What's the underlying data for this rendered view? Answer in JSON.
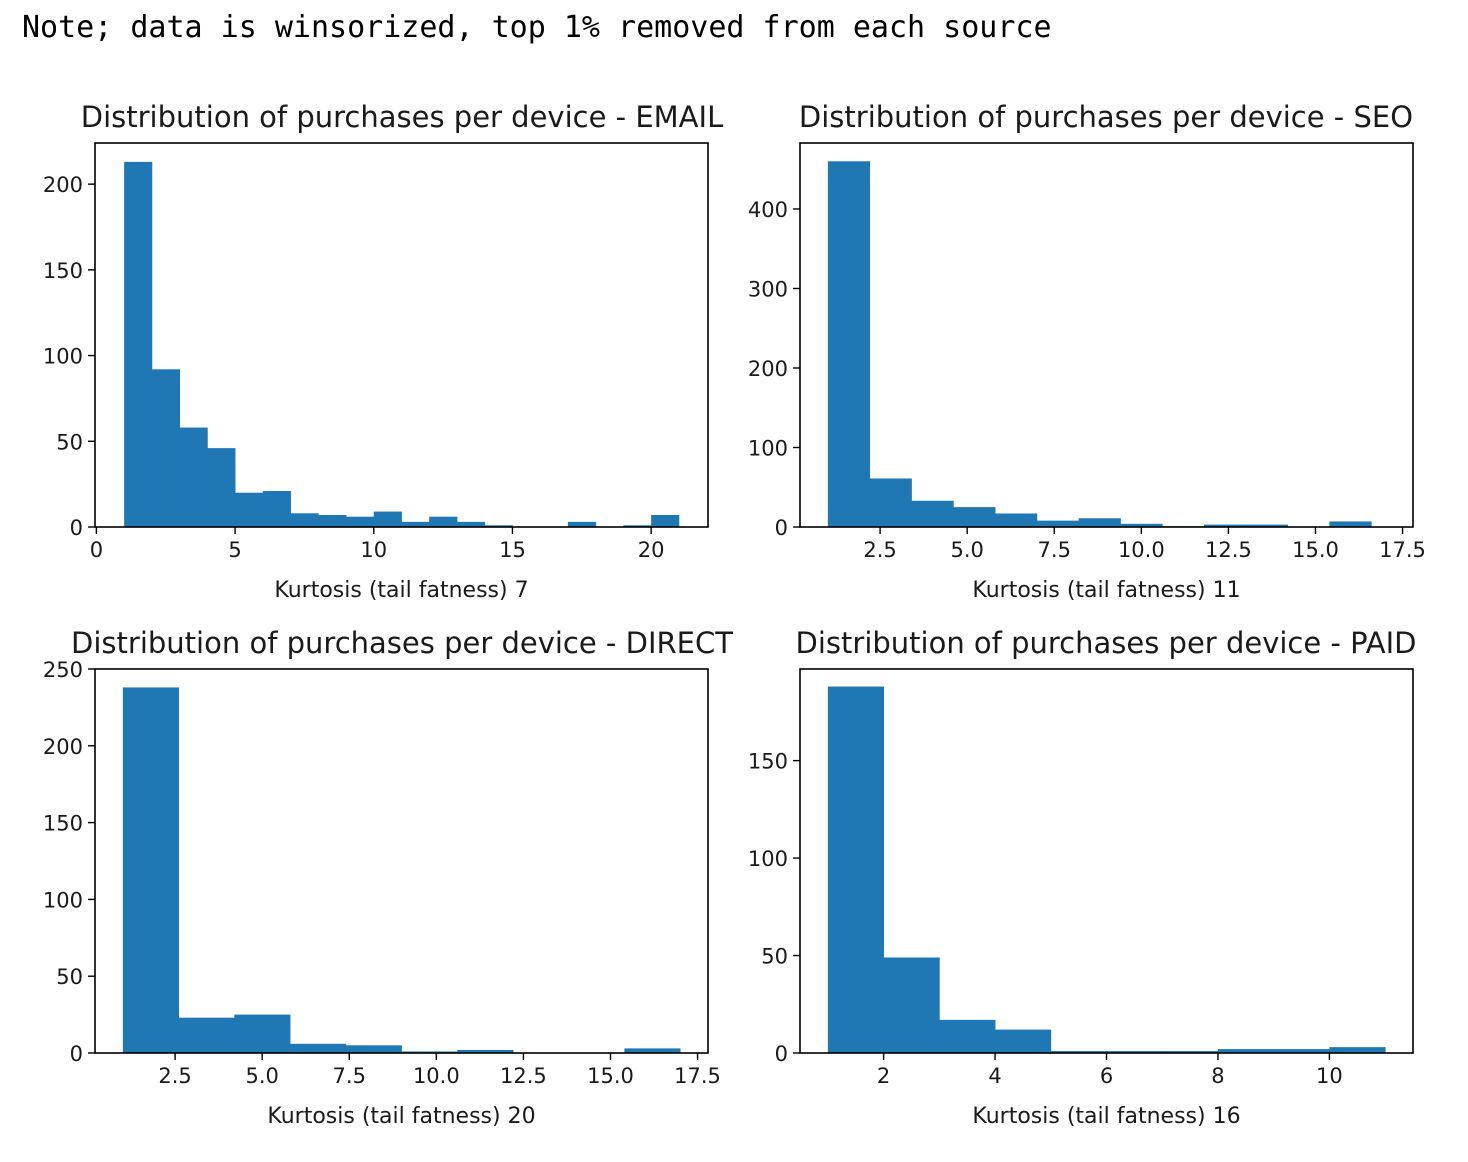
{
  "note": "Note; data is winsorized, top 1% removed from each source",
  "colors": {
    "bar": "#1f77b4",
    "axis": "#000000"
  },
  "chart_data": [
    {
      "type": "bar",
      "subtype": "histogram",
      "title": "Distribution of purchases per device - EMAIL",
      "xlabel": "Kurtosis (tail fatness) 7",
      "ylabel": "",
      "xlim": [
        -0.05,
        22.05
      ],
      "ylim": [
        0,
        224
      ],
      "xticks": [
        0,
        5,
        10,
        15,
        20
      ],
      "xtick_labels": [
        "0",
        "5",
        "10",
        "15",
        "20"
      ],
      "yticks": [
        0,
        50,
        100,
        150,
        200
      ],
      "ytick_labels": [
        "0",
        "50",
        "100",
        "150",
        "200"
      ],
      "bin_edges": [
        1,
        2,
        3,
        4,
        5,
        6,
        7,
        8,
        9,
        10,
        11,
        12,
        13,
        14,
        15,
        16,
        17,
        18,
        19,
        20,
        21
      ],
      "values": [
        213,
        92,
        58,
        46,
        20,
        21,
        8,
        7,
        6,
        9,
        3,
        6,
        3,
        1,
        0,
        0,
        3,
        0,
        1,
        7
      ],
      "grid": false
    },
    {
      "type": "bar",
      "subtype": "histogram",
      "title": "Distribution of purchases per device - SEO",
      "xlabel": "Kurtosis (tail fatness) 11",
      "ylabel": "",
      "xlim": [
        0.2,
        17.8
      ],
      "ylim": [
        0,
        483
      ],
      "xticks": [
        2.5,
        5.0,
        7.5,
        10.0,
        12.5,
        15.0,
        17.5
      ],
      "xtick_labels": [
        "2.5",
        "5.0",
        "7.5",
        "10.0",
        "12.5",
        "15.0",
        "17.5"
      ],
      "yticks": [
        0,
        100,
        200,
        300,
        400
      ],
      "ytick_labels": [
        "0",
        "100",
        "200",
        "300",
        "400"
      ],
      "bin_edges": [
        1,
        2.2,
        3.4,
        4.6,
        5.8,
        7.0,
        8.2,
        9.4,
        10.6,
        11.8,
        13.0,
        14.2,
        15.4,
        16.6
      ],
      "values": [
        460,
        61,
        33,
        25,
        17,
        8,
        11,
        4,
        1,
        3,
        3,
        0,
        7
      ],
      "grid": false
    },
    {
      "type": "bar",
      "subtype": "histogram",
      "title": "Distribution of purchases per device - DIRECT",
      "xlabel": "Kurtosis (tail fatness) 20",
      "ylabel": "",
      "xlim": [
        0.2,
        17.8
      ],
      "ylim": [
        0,
        250
      ],
      "xticks": [
        2.5,
        5.0,
        7.5,
        10.0,
        12.5,
        15.0,
        17.5
      ],
      "xtick_labels": [
        "2.5",
        "5.0",
        "7.5",
        "10.0",
        "12.5",
        "15.0",
        "17.5"
      ],
      "yticks": [
        0,
        50,
        100,
        150,
        200,
        250
      ],
      "ytick_labels": [
        "0",
        "50",
        "100",
        "150",
        "200",
        "250"
      ],
      "bin_edges": [
        1,
        2.6,
        4.2,
        5.8,
        7.4,
        9.0,
        10.6,
        12.2,
        13.8,
        15.4,
        17.0
      ],
      "values": [
        238,
        23,
        25,
        6,
        5,
        1,
        2,
        0,
        0,
        3
      ],
      "grid": false
    },
    {
      "type": "bar",
      "subtype": "histogram",
      "title": "Distribution of purchases per device - PAID",
      "xlabel": "Kurtosis (tail fatness) 16",
      "ylabel": "",
      "xlim": [
        0.5,
        11.5
      ],
      "ylim": [
        0,
        197
      ],
      "xticks": [
        2,
        4,
        6,
        8,
        10
      ],
      "xtick_labels": [
        "2",
        "4",
        "6",
        "8",
        "10"
      ],
      "yticks": [
        0,
        50,
        100,
        150
      ],
      "ytick_labels": [
        "0",
        "50",
        "100",
        "150"
      ],
      "bin_edges": [
        1,
        2,
        3,
        4,
        5,
        6,
        7,
        8,
        9,
        10,
        11
      ],
      "values": [
        188,
        49,
        17,
        12,
        1,
        1,
        1,
        2,
        2,
        3
      ],
      "grid": false
    }
  ]
}
